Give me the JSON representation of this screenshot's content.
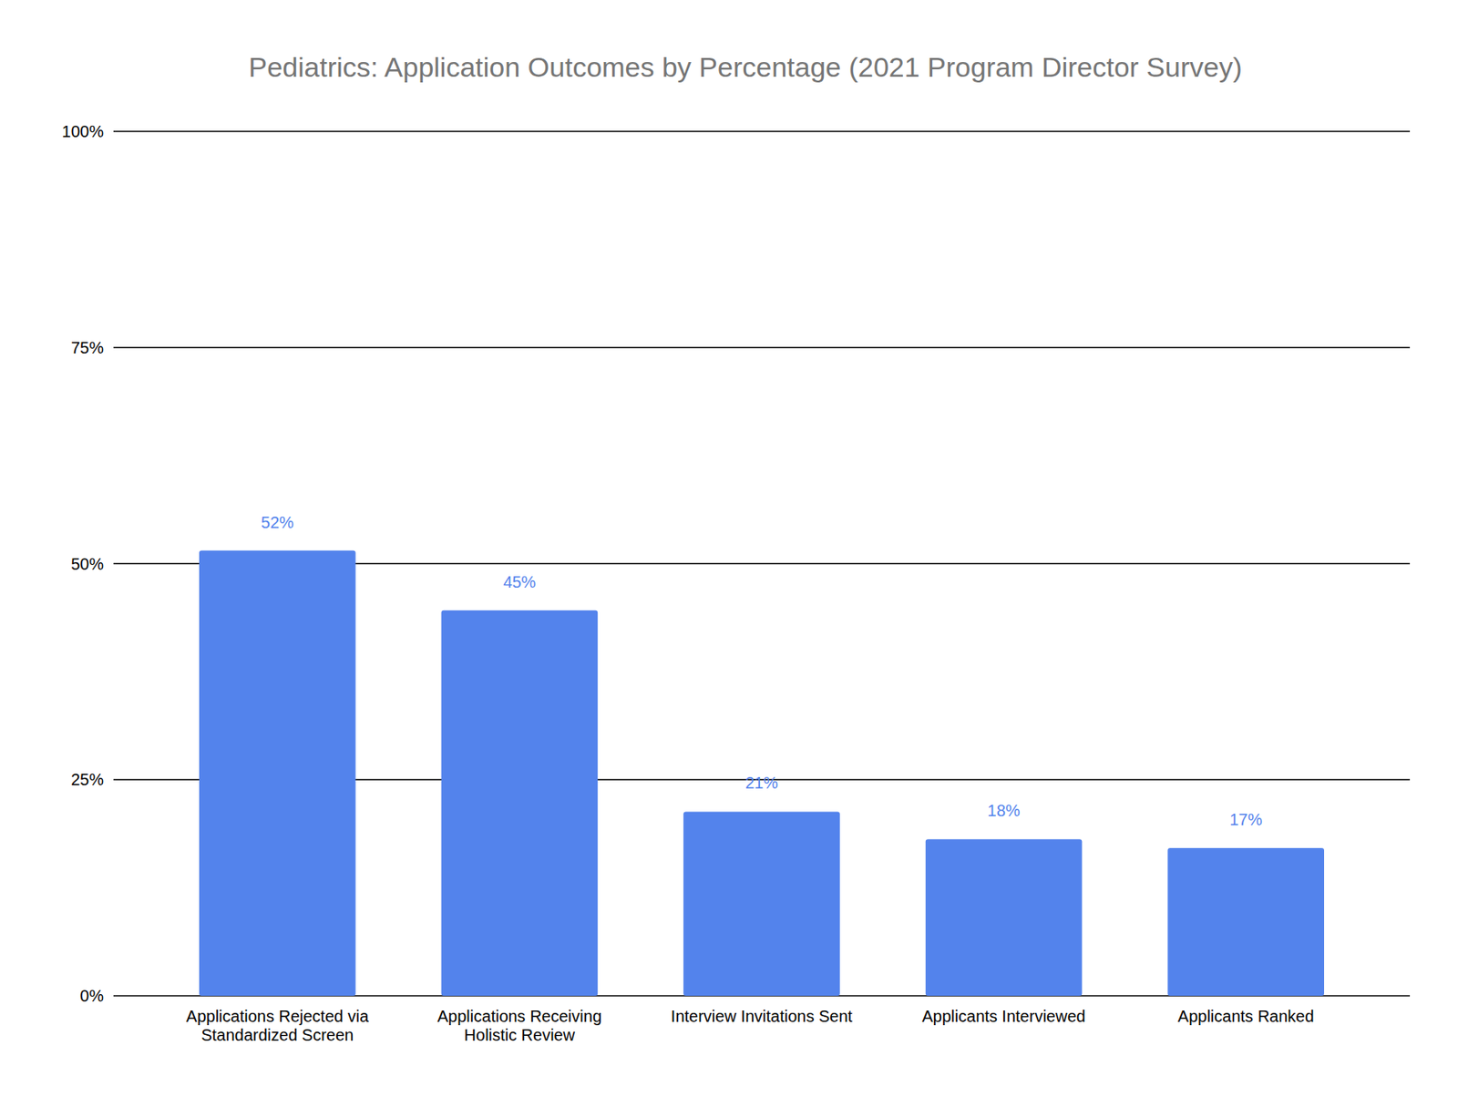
{
  "chart_data": {
    "type": "bar",
    "title": "Pediatrics: Application Outcomes by Percentage (2021 Program Director Survey)",
    "categories": [
      "Applications Rejected via Standardized Screen",
      "Applications Receiving Holistic Review",
      "Interview Invitations Sent",
      "Applicants Interviewed",
      "Applicants Ranked"
    ],
    "values": [
      51.5,
      44.6,
      21.3,
      18.1,
      17.1
    ],
    "value_labels": [
      "52%",
      "45%",
      "21%",
      "18%",
      "17%"
    ],
    "color": "#5383ec",
    "ylim": [
      0,
      100
    ],
    "yticks": [
      {
        "value": 0,
        "label": "0%"
      },
      {
        "value": 25,
        "label": "25%"
      },
      {
        "value": 50,
        "label": "50%"
      },
      {
        "value": 75,
        "label": "75%"
      },
      {
        "value": 100,
        "label": "100%"
      }
    ],
    "grid": true,
    "data_labels": true
  }
}
